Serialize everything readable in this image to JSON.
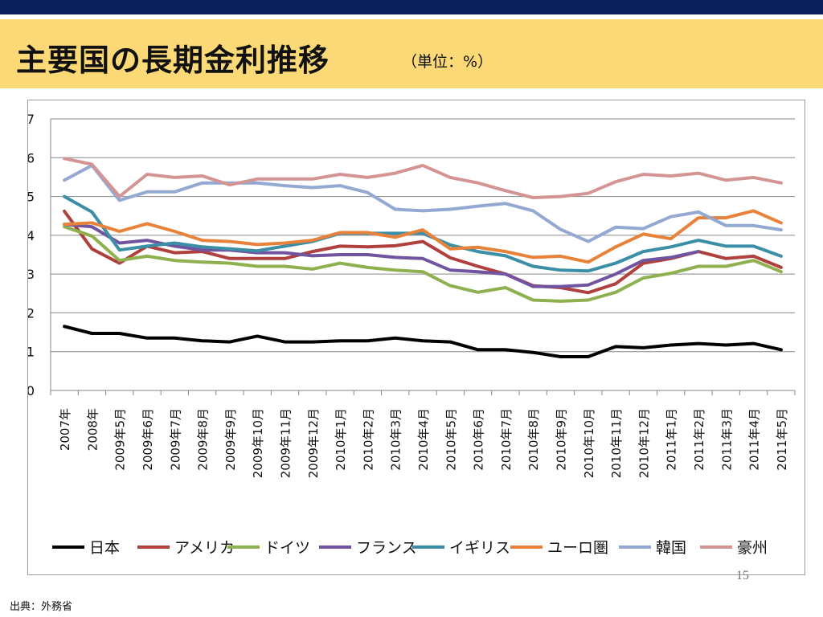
{
  "header": {
    "title": "主要国の長期金利推移",
    "unit": "（単位：%）"
  },
  "page_number": "15",
  "source": "出典：外務省",
  "colors": {
    "header_bar": "#0b1f5c",
    "title_band": "#fcd977",
    "grid": "#868686"
  },
  "chart_data": {
    "type": "line",
    "title": "",
    "xlabel": "",
    "ylabel": "",
    "ylim": [
      0,
      7
    ],
    "yticks": [
      0,
      1,
      2,
      3,
      4,
      5,
      6,
      7
    ],
    "grid": true,
    "legend_position": "bottom",
    "categories": [
      "2007年",
      "2008年",
      "2009年5月",
      "2009年6月",
      "2009年7月",
      "2009年8月",
      "2009年9月",
      "2009年10月",
      "2009年11月",
      "2009年12月",
      "2010年1月",
      "2010年2月",
      "2010年3月",
      "2010年4月",
      "2010年5月",
      "2010年6月",
      "2010年7月",
      "2010年8月",
      "2010年9月",
      "2010年10月",
      "2010年11月",
      "2010年12月",
      "2011年1月",
      "2011年2月",
      "2011年3月",
      "2011年4月",
      "2011年5月"
    ],
    "series": [
      {
        "name": "日本",
        "color": "#000000",
        "values": [
          1.65,
          1.47,
          1.47,
          1.35,
          1.35,
          1.28,
          1.25,
          1.4,
          1.25,
          1.25,
          1.28,
          1.28,
          1.35,
          1.28,
          1.25,
          1.05,
          1.05,
          0.98,
          0.87,
          0.87,
          1.13,
          1.1,
          1.17,
          1.21,
          1.17,
          1.21,
          1.05
        ]
      },
      {
        "name": "アメリカ",
        "color": "#b0403d",
        "values": [
          4.62,
          3.65,
          3.28,
          3.72,
          3.55,
          3.58,
          3.4,
          3.4,
          3.4,
          3.58,
          3.72,
          3.7,
          3.73,
          3.84,
          3.42,
          3.2,
          3.0,
          2.7,
          2.65,
          2.52,
          2.75,
          3.28,
          3.4,
          3.58,
          3.4,
          3.46,
          3.17
        ]
      },
      {
        "name": "ドイツ",
        "color": "#8fb04f",
        "values": [
          4.22,
          3.98,
          3.35,
          3.46,
          3.35,
          3.31,
          3.28,
          3.2,
          3.2,
          3.13,
          3.28,
          3.17,
          3.1,
          3.06,
          2.7,
          2.53,
          2.65,
          2.33,
          2.3,
          2.33,
          2.53,
          2.9,
          3.02,
          3.2,
          3.2,
          3.35,
          3.06
        ]
      },
      {
        "name": "フランス",
        "color": "#7054a0",
        "values": [
          4.28,
          4.22,
          3.8,
          3.87,
          3.72,
          3.62,
          3.62,
          3.55,
          3.55,
          3.47,
          3.5,
          3.5,
          3.43,
          3.4,
          3.1,
          3.06,
          3.0,
          2.68,
          2.68,
          2.72,
          3.0,
          3.35,
          3.43,
          3.58,
          null,
          null,
          null
        ]
      },
      {
        "name": "イギリス",
        "color": "#3a8ea6",
        "values": [
          5.0,
          4.6,
          3.62,
          3.72,
          3.8,
          3.7,
          3.65,
          3.6,
          3.72,
          3.84,
          4.05,
          4.05,
          4.05,
          4.05,
          3.75,
          3.58,
          3.47,
          3.2,
          3.1,
          3.08,
          3.28,
          3.58,
          3.7,
          3.87,
          3.72,
          3.72,
          3.46
        ]
      },
      {
        "name": "ユーロ圏",
        "color": "#e8823a",
        "values": [
          4.28,
          4.32,
          4.1,
          4.3,
          4.1,
          3.87,
          3.84,
          3.76,
          3.8,
          3.87,
          4.07,
          4.07,
          3.95,
          4.14,
          3.65,
          3.69,
          3.58,
          3.43,
          3.46,
          3.31,
          3.7,
          4.03,
          3.91,
          4.45,
          4.45,
          4.63,
          4.32
        ]
      },
      {
        "name": "韓国",
        "color": "#93a9d2",
        "values": [
          5.42,
          5.8,
          4.9,
          5.12,
          5.12,
          5.35,
          5.35,
          5.35,
          5.28,
          5.23,
          5.28,
          5.1,
          4.67,
          4.63,
          4.67,
          4.75,
          4.82,
          4.63,
          4.15,
          3.84,
          4.21,
          4.17,
          4.48,
          4.6,
          4.25,
          4.25,
          4.14
        ]
      },
      {
        "name": "豪州",
        "color": "#d49494",
        "values": [
          5.98,
          5.83,
          5.0,
          5.57,
          5.49,
          5.53,
          5.3,
          5.45,
          5.45,
          5.45,
          5.57,
          5.49,
          5.6,
          5.8,
          5.49,
          5.35,
          5.15,
          4.97,
          5.0,
          5.08,
          5.38,
          5.57,
          5.53,
          5.6,
          5.42,
          5.49,
          5.35
        ]
      }
    ]
  }
}
